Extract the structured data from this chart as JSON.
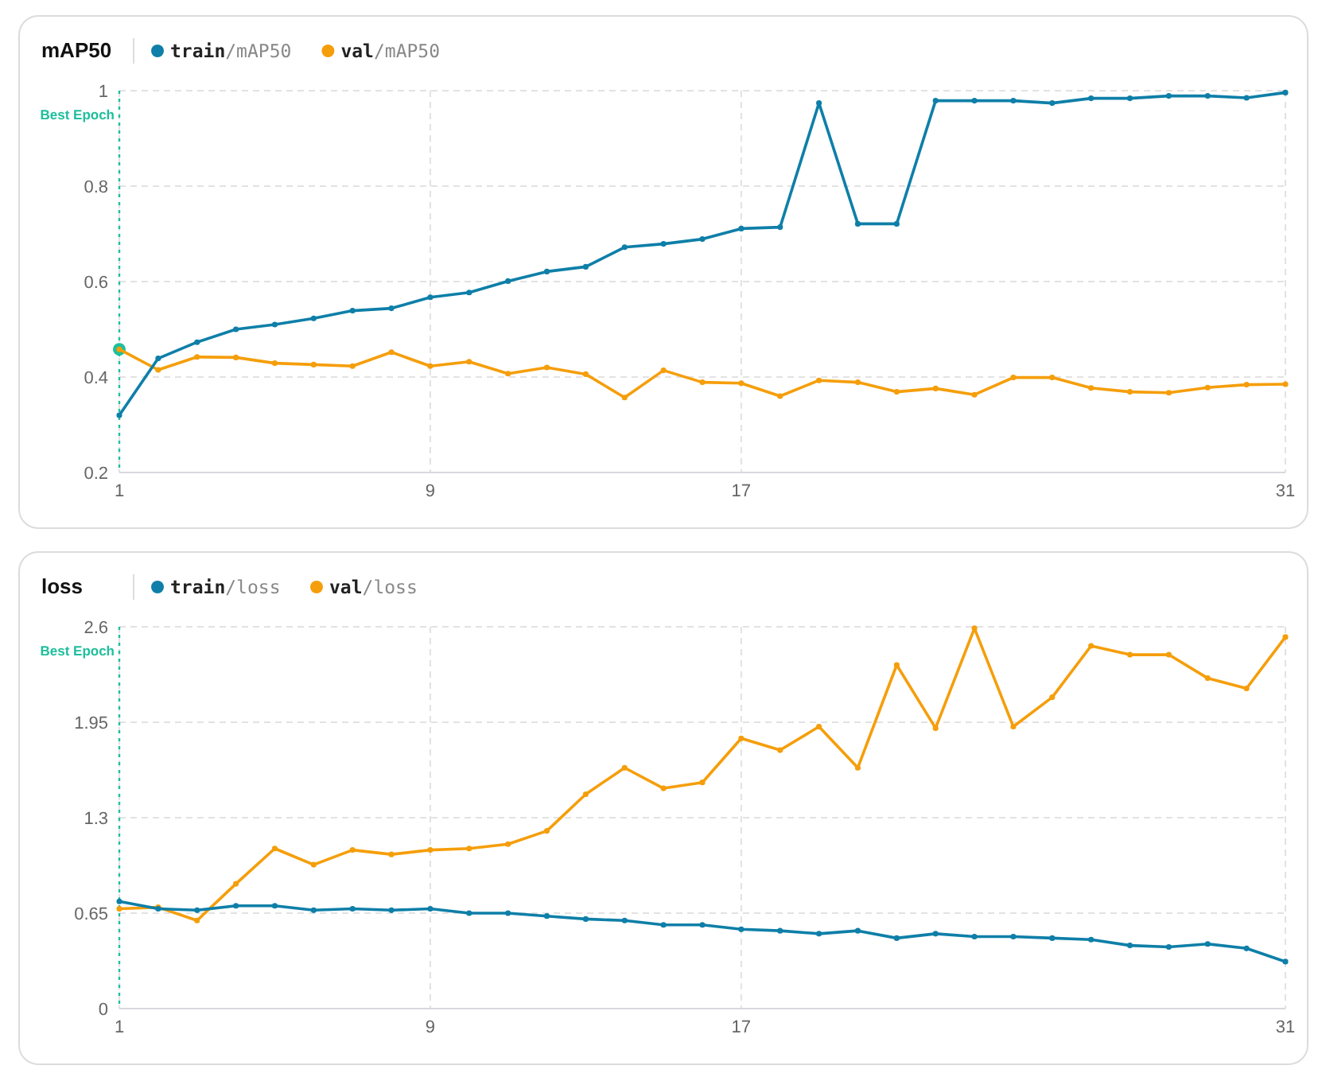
{
  "chart_data": [
    {
      "type": "line",
      "title": "mAP50",
      "x": [
        1,
        2,
        3,
        4,
        5,
        6,
        7,
        8,
        9,
        10,
        11,
        12,
        13,
        14,
        15,
        16,
        17,
        18,
        19,
        20,
        21,
        22,
        23,
        24,
        25,
        26,
        27,
        28,
        29,
        30,
        31
      ],
      "xlim": [
        1,
        31
      ],
      "xticks": [
        1,
        9,
        17,
        31
      ],
      "ylim": [
        0.2,
        1
      ],
      "yticks": [
        0.2,
        0.4,
        0.6,
        0.8,
        1
      ],
      "grid": true,
      "legend": "top left",
      "marker": "circle",
      "series": [
        {
          "name": "train/mAP50",
          "color": "#0e7fa8",
          "values": [
            0.32,
            0.439,
            0.473,
            0.5,
            0.51,
            0.523,
            0.539,
            0.544,
            0.567,
            0.577,
            0.601,
            0.621,
            0.631,
            0.672,
            0.679,
            0.689,
            0.711,
            0.714,
            0.974,
            0.721,
            0.721,
            0.979,
            0.979,
            0.979,
            0.974,
            0.984,
            0.984,
            0.989,
            0.989,
            0.985,
            0.996
          ]
        },
        {
          "name": "val/mAP50",
          "color": "#f59e0b",
          "values": [
            0.458,
            0.415,
            0.442,
            0.441,
            0.429,
            0.426,
            0.423,
            0.452,
            0.423,
            0.432,
            0.407,
            0.42,
            0.406,
            0.357,
            0.414,
            0.389,
            0.387,
            0.36,
            0.393,
            0.389,
            0.369,
            0.376,
            0.363,
            0.399,
            0.399,
            0.377,
            0.369,
            0.367,
            0.378,
            0.384,
            0.385
          ]
        },
        {
          "type": "scatter",
          "color": "#1fbf9c",
          "x": [
            1
          ],
          "values": [
            0.458
          ]
        }
      ],
      "ref_lines": [
        {
          "axis": "x",
          "value": 1,
          "label": "Best Epoch",
          "color": "#1fbf9c",
          "line_style": "dotted"
        }
      ]
    },
    {
      "type": "line",
      "title": "loss",
      "x": [
        1,
        2,
        3,
        4,
        5,
        6,
        7,
        8,
        9,
        10,
        11,
        12,
        13,
        14,
        15,
        16,
        17,
        18,
        19,
        20,
        21,
        22,
        23,
        24,
        25,
        26,
        27,
        28,
        29,
        30,
        31
      ],
      "xlim": [
        1,
        31
      ],
      "xticks": [
        1,
        9,
        17,
        31
      ],
      "ylim": [
        0,
        2.6
      ],
      "yticks": [
        0,
        0.65,
        1.3,
        1.95,
        2.6
      ],
      "grid": true,
      "legend": "top left",
      "marker": "circle",
      "series": [
        {
          "name": "train/loss",
          "color": "#0e7fa8",
          "values": [
            0.73,
            0.68,
            0.67,
            0.7,
            0.7,
            0.67,
            0.68,
            0.67,
            0.68,
            0.65,
            0.65,
            0.63,
            0.61,
            0.6,
            0.57,
            0.57,
            0.54,
            0.53,
            0.51,
            0.53,
            0.48,
            0.51,
            0.49,
            0.49,
            0.48,
            0.47,
            0.43,
            0.42,
            0.44,
            0.41,
            0.32
          ]
        },
        {
          "name": "val/loss",
          "color": "#f59e0b",
          "values": [
            0.68,
            0.69,
            0.6,
            0.85,
            1.09,
            0.98,
            1.08,
            1.05,
            1.08,
            1.09,
            1.12,
            1.21,
            1.46,
            1.64,
            1.5,
            1.54,
            1.84,
            1.76,
            1.92,
            1.64,
            2.34,
            1.91,
            2.59,
            1.92,
            2.12,
            2.47,
            2.41,
            2.41,
            2.25,
            2.18,
            2.53
          ]
        }
      ],
      "ref_lines": [
        {
          "axis": "x",
          "value": 1,
          "label": "Best Epoch",
          "color": "#1fbf9c",
          "line_style": "dotted"
        }
      ]
    }
  ]
}
